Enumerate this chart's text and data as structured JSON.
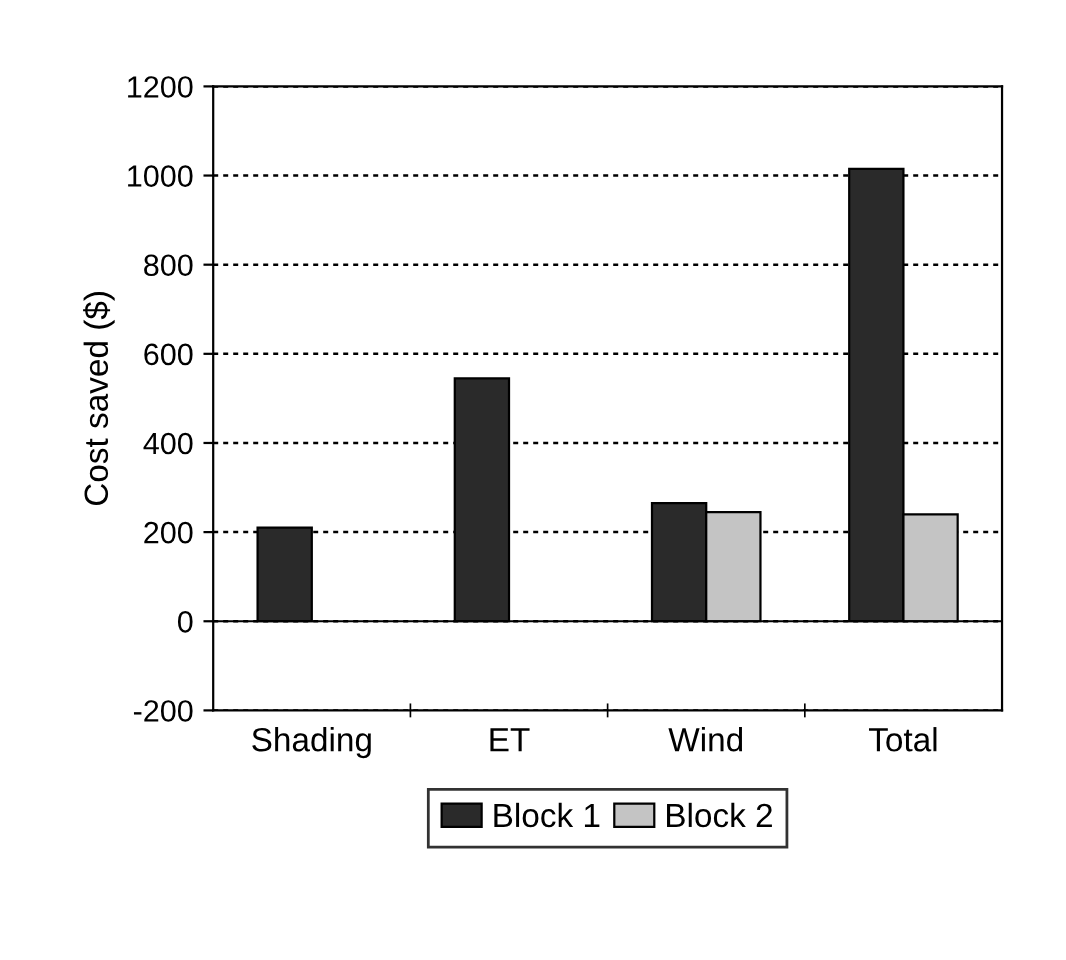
{
  "chart_data": {
    "type": "bar",
    "ylabel": "Cost saved ($)",
    "categories": [
      "Shading",
      "ET",
      "Wind",
      "Total"
    ],
    "series": [
      {
        "name": "Block 1",
        "color": "#2a2a2a",
        "values": [
          210,
          545,
          265,
          1015
        ]
      },
      {
        "name": "Block 2",
        "color": "#c4c4c4",
        "values": [
          null,
          null,
          245,
          240
        ]
      }
    ],
    "ylim": [
      -200,
      1200
    ],
    "yticks": [
      -200,
      0,
      200,
      400,
      600,
      800,
      1000,
      1200
    ],
    "grid": "y",
    "legend": "bottom"
  }
}
